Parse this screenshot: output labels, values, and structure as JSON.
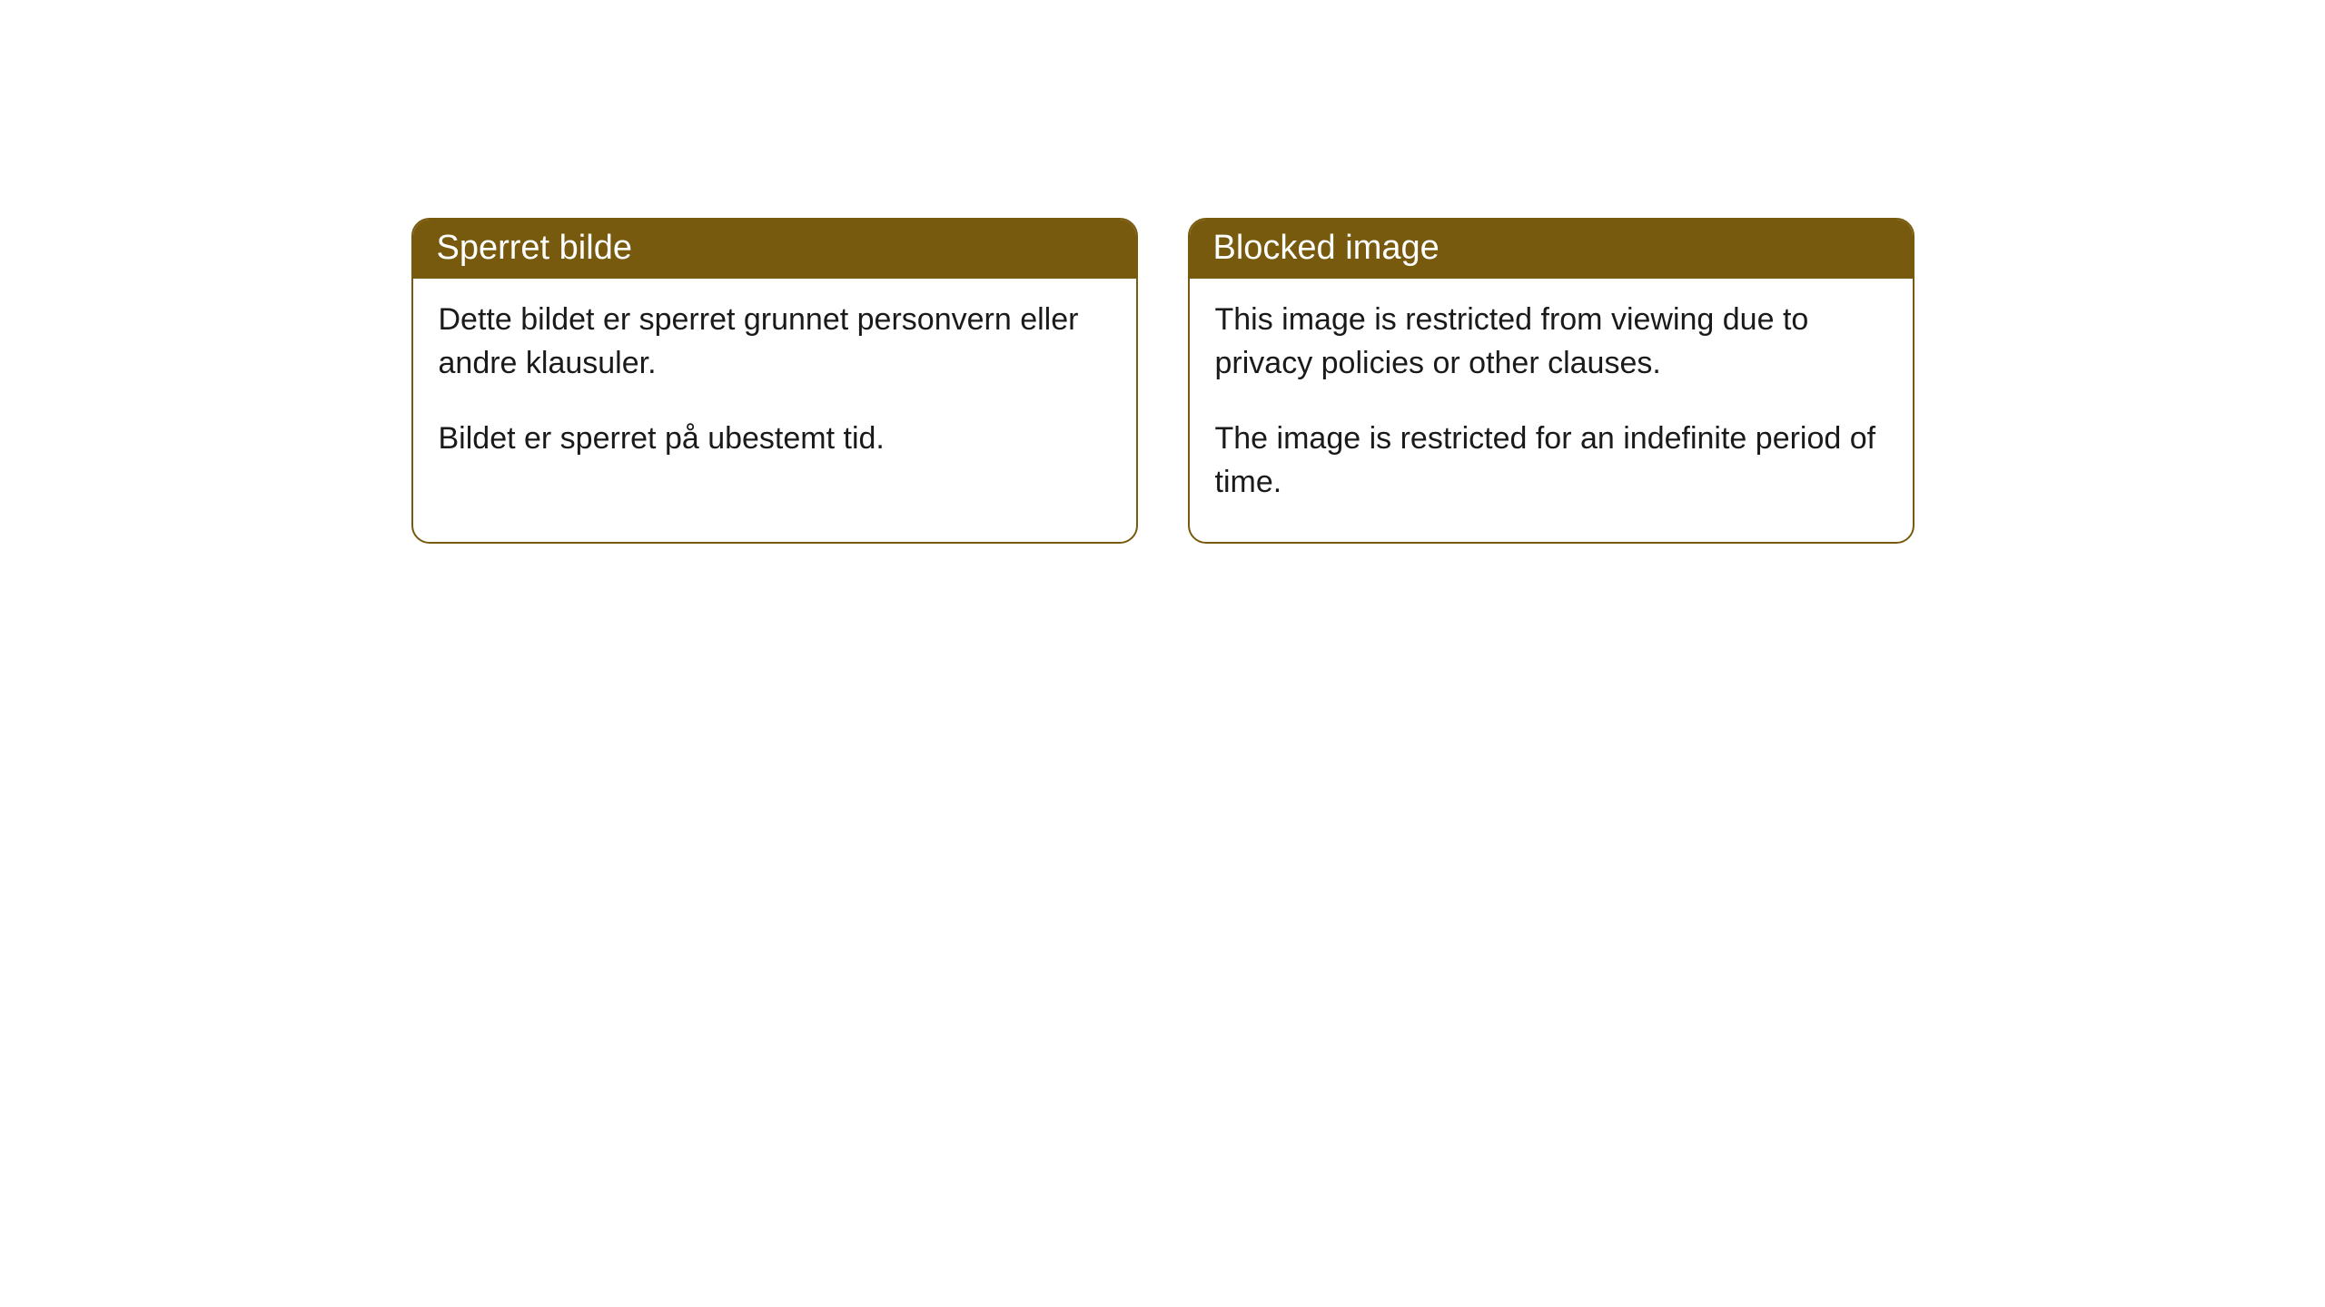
{
  "cards": [
    {
      "header": "Sperret bilde",
      "para1": "Dette bildet er sperret grunnet personvern eller andre klausuler.",
      "para2": "Bildet er sperret på ubestemt tid."
    },
    {
      "header": "Blocked image",
      "para1": "This image is restricted from viewing due to privacy policies or other clauses.",
      "para2": "The image is restricted for an indefinite period of time."
    }
  ],
  "styling": {
    "header_background": "#785a0e",
    "header_text_color": "#ffffff",
    "card_border_color": "#785a0e",
    "card_background": "#ffffff",
    "body_text_color": "#1a1a1a",
    "page_background": "#ffffff",
    "border_radius": 20,
    "header_fontsize": 38,
    "body_fontsize": 34
  }
}
